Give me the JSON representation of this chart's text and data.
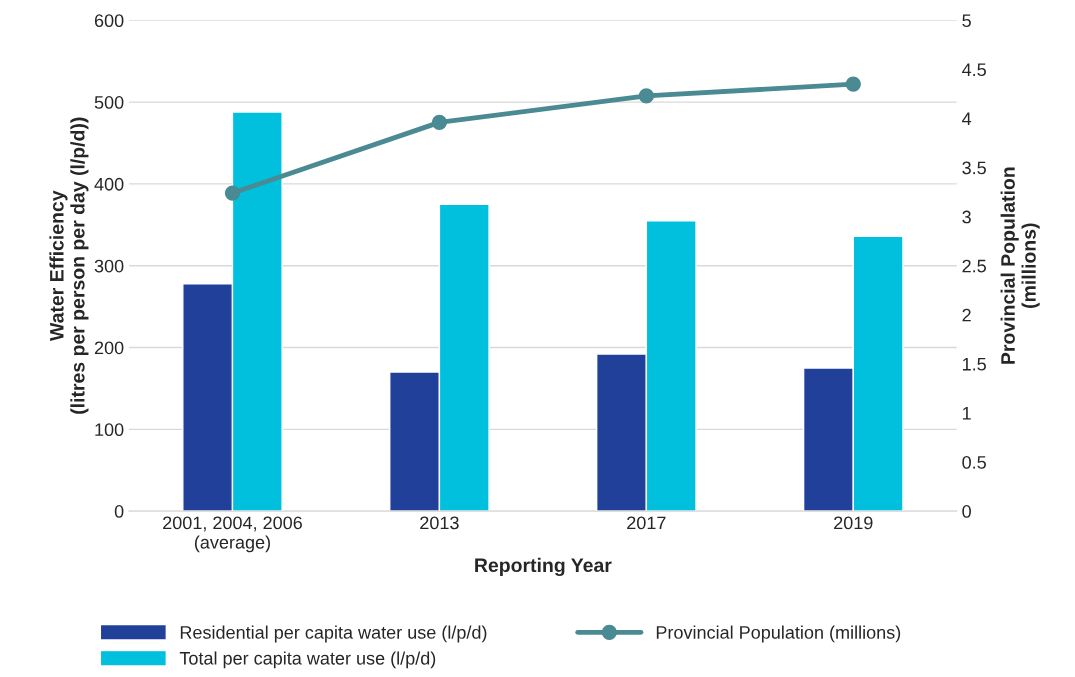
{
  "chart_data": {
    "type": "bar",
    "xlabel": "Reporting Year",
    "ylabel": "Water Efficiency\n(litres per person per day (l/p/d))",
    "y2label": "Provincial Population\n(millions)",
    "categories": [
      "2001, 2004, 2006\n(average)",
      "2013",
      "2017",
      "2019"
    ],
    "series": [
      {
        "name": "Residential per capita water use (l/p/d)",
        "color": "#21409a",
        "values": [
          278,
          170,
          192,
          175
        ]
      },
      {
        "name": "Total per capita water use (l/p/d)",
        "color": "#00c0de",
        "values": [
          488,
          375,
          355,
          336
        ]
      },
      {
        "name": "Provincial Population (millions)",
        "type": "line",
        "axis": "y2",
        "color": "#4a8a93",
        "marker": "circle",
        "values": [
          3.24,
          3.96,
          4.23,
          4.35
        ]
      }
    ],
    "ylim": [
      0,
      600
    ],
    "yticks": [
      0,
      100,
      200,
      300,
      400,
      500,
      600
    ],
    "y2lim": [
      0,
      5
    ],
    "y2ticks": [
      0,
      0.5,
      1,
      1.5,
      2,
      2.5,
      3,
      3.5,
      4,
      4.5,
      5
    ],
    "grid": "y",
    "legend": "bottom"
  }
}
